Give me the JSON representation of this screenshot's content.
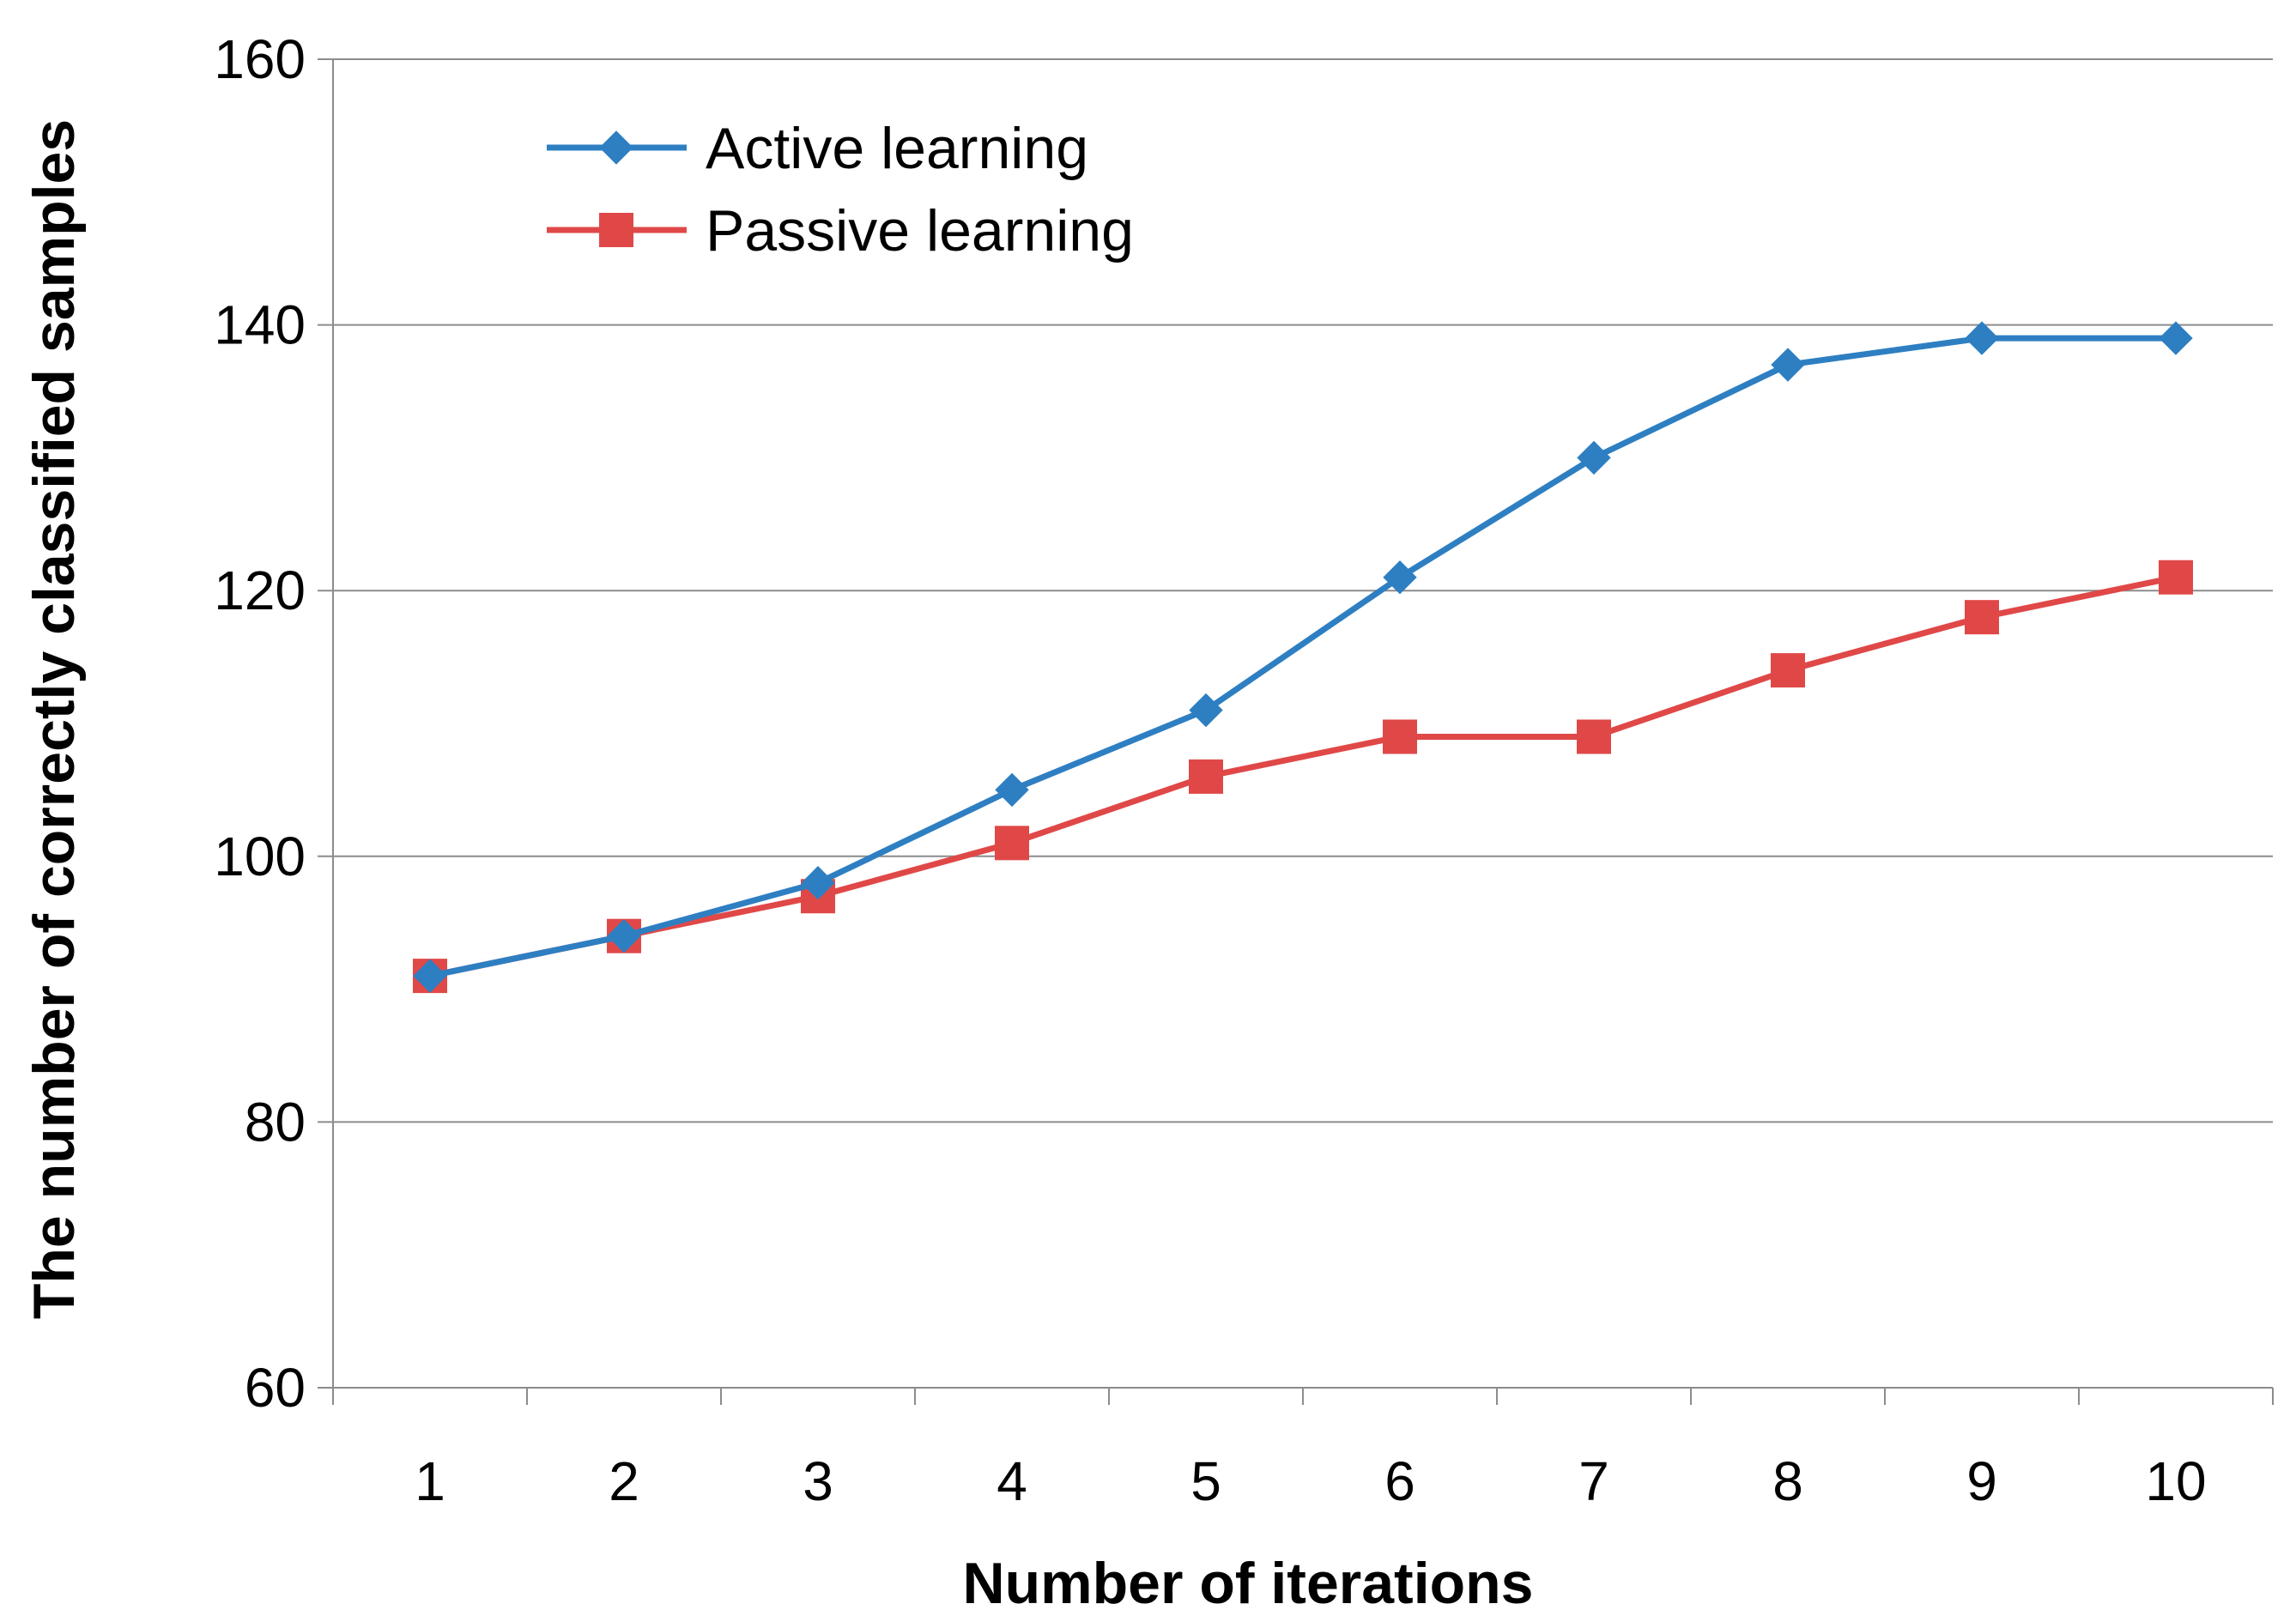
{
  "chart_data": {
    "type": "line",
    "title": "",
    "xlabel": "Number of iterations",
    "ylabel": "The number of correctly classified samples",
    "categories": [
      "1",
      "2",
      "3",
      "4",
      "5",
      "6",
      "7",
      "8",
      "9",
      "10"
    ],
    "ylim": [
      60,
      160
    ],
    "yticks": [
      60,
      80,
      100,
      120,
      140,
      160
    ],
    "grid": true,
    "legend_position": "top-left",
    "series": [
      {
        "name": "Active learning",
        "color": "#2e7fc2",
        "marker": "diamond",
        "values": [
          91,
          94,
          98,
          105,
          111,
          121,
          130,
          137,
          139,
          139
        ]
      },
      {
        "name": "Passive learning",
        "color": "#e04848",
        "marker": "square",
        "values": [
          91,
          94,
          97,
          101,
          106,
          109,
          109,
          114,
          118,
          121
        ]
      }
    ]
  }
}
